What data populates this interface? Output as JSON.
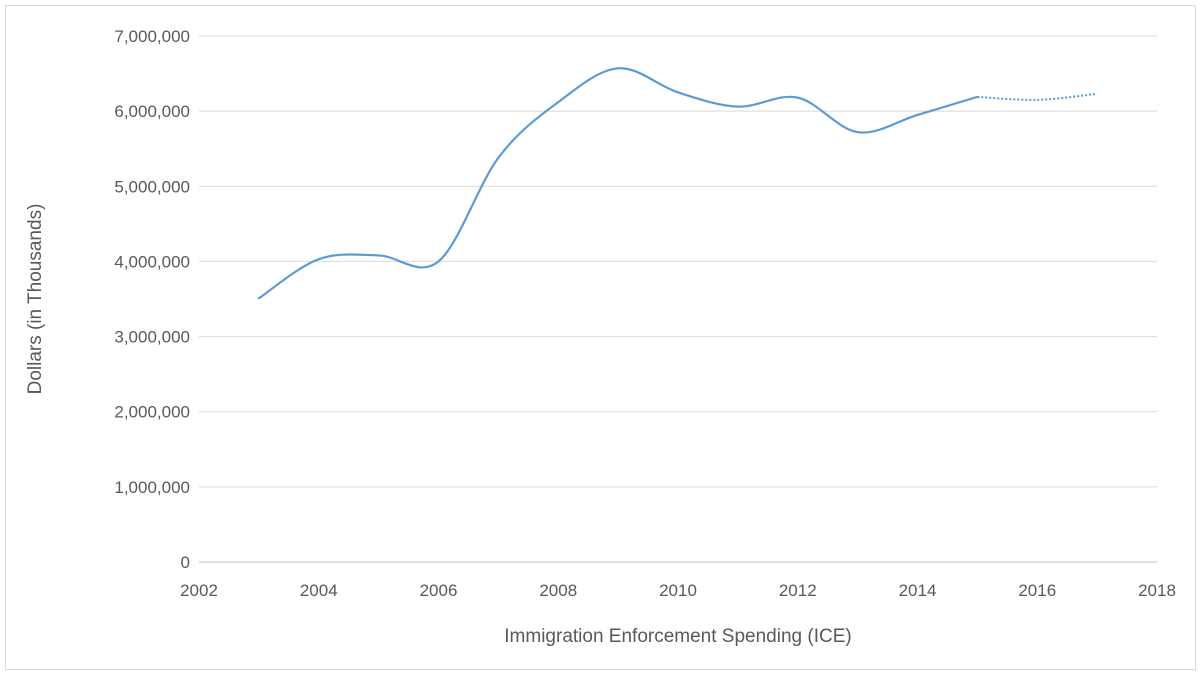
{
  "chart_data": {
    "type": "line",
    "title": "",
    "xlabel": "Immigration Enforcement Spending (ICE)",
    "ylabel": "Dollars (in Thousands)",
    "xlim": [
      2002,
      2018
    ],
    "ylim": [
      0,
      7000000
    ],
    "x_ticks": [
      2002,
      2004,
      2006,
      2008,
      2010,
      2012,
      2014,
      2016,
      2018
    ],
    "x_tick_labels": [
      "2002",
      "2004",
      "2006",
      "2008",
      "2010",
      "2012",
      "2014",
      "2016",
      "2018"
    ],
    "y_ticks": [
      0,
      1000000,
      2000000,
      3000000,
      4000000,
      5000000,
      6000000,
      7000000
    ],
    "y_tick_labels": [
      "0",
      "1,000,000",
      "2,000,000",
      "3,000,000",
      "4,000,000",
      "5,000,000",
      "6,000,000",
      "7,000,000"
    ],
    "grid": "horizontal",
    "legend": "none",
    "line_color": "#5b9bd5",
    "series": [
      {
        "style": "solid",
        "x": [
          2003,
          2004,
          2005,
          2006,
          2007,
          2008,
          2009,
          2010,
          2011,
          2012,
          2013,
          2014,
          2015
        ],
        "y": [
          3510000,
          4030000,
          4080000,
          4000000,
          5380000,
          6120000,
          6570000,
          6250000,
          6060000,
          6180000,
          5720000,
          5950000,
          6190000
        ]
      },
      {
        "style": "dotted",
        "x": [
          2015,
          2016,
          2017
        ],
        "y": [
          6190000,
          6150000,
          6230000
        ]
      }
    ]
  }
}
